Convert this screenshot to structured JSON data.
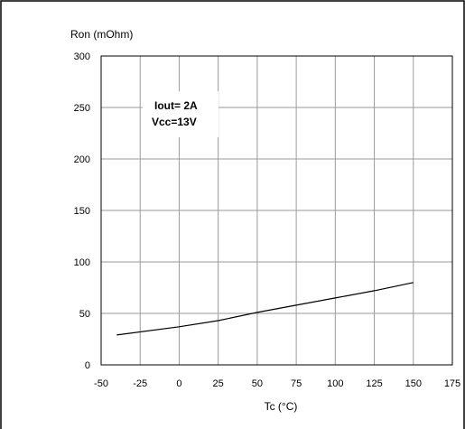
{
  "chart_data": {
    "type": "line",
    "title": "",
    "xlabel": "Tc (°C)",
    "ylabel": "Ron (mOhm)",
    "xlim": [
      -50,
      175
    ],
    "ylim": [
      0,
      300
    ],
    "xticks": [
      -50,
      -25,
      0,
      25,
      50,
      75,
      100,
      125,
      150,
      175
    ],
    "yticks": [
      0,
      50,
      100,
      150,
      200,
      250,
      300
    ],
    "xtick_labels": [
      "-50",
      "-25",
      "0",
      "25",
      "50",
      "75",
      "100",
      "125",
      "150",
      "175"
    ],
    "ytick_labels": [
      "0",
      "50",
      "100",
      "150",
      "200",
      "250",
      "300"
    ],
    "grid": true,
    "annotations": [
      "Iout= 2A",
      "Vcc=13V"
    ],
    "series": [
      {
        "x": [
          -40,
          0,
          25,
          50,
          75,
          100,
          125,
          150
        ],
        "y": [
          29,
          37,
          43,
          51,
          58,
          65,
          72,
          80
        ]
      }
    ]
  }
}
